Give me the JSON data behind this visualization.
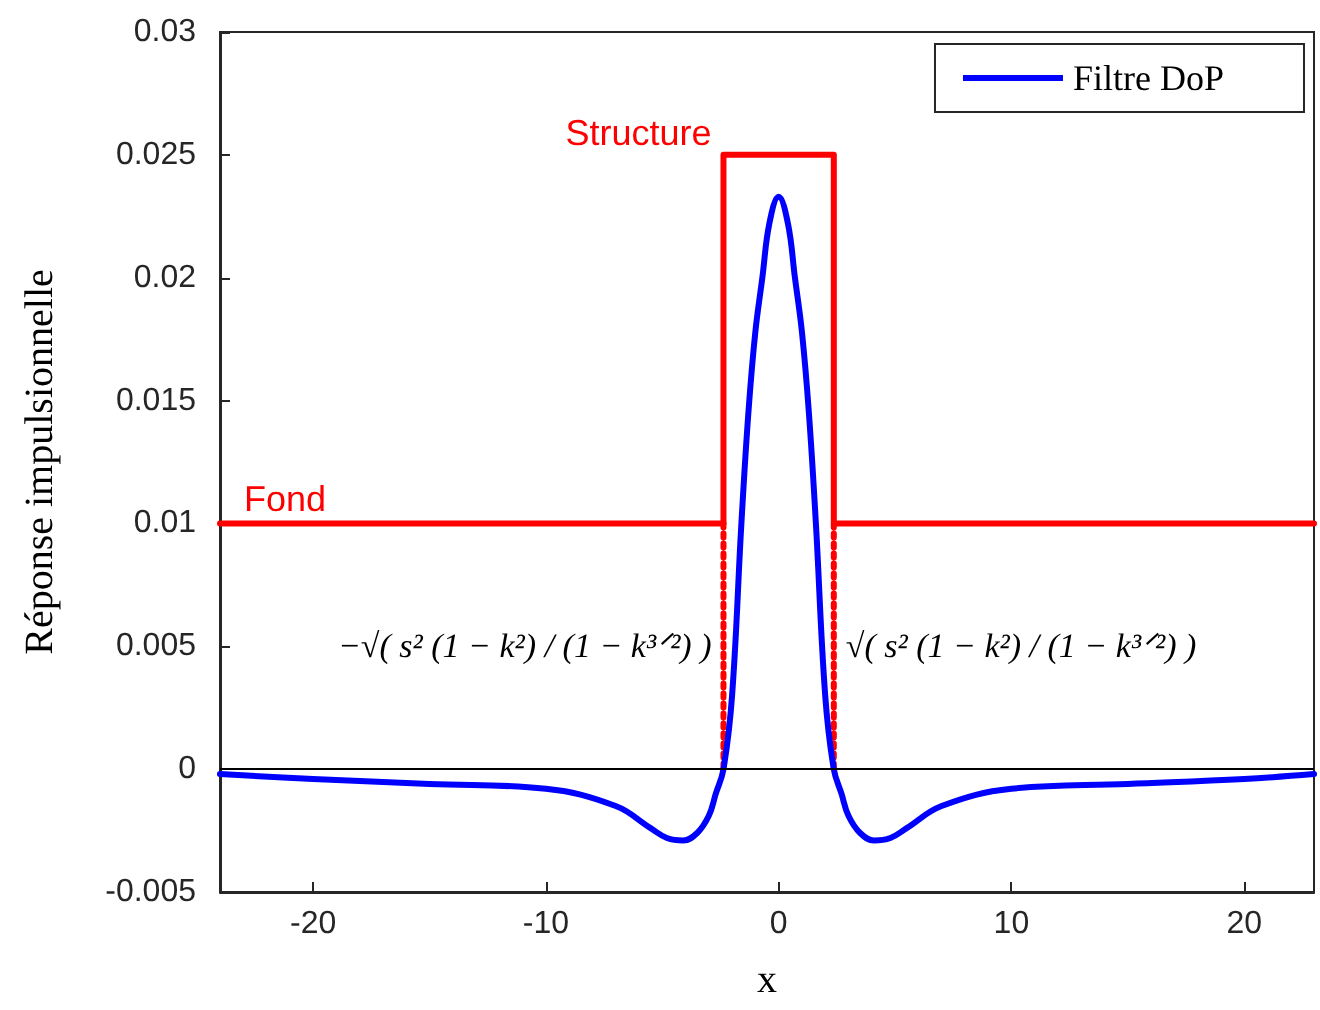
{
  "chart_data": {
    "type": "line",
    "xlabel": "x",
    "ylabel": "Réponse impulsionnelle",
    "xlim": [
      -24,
      23
    ],
    "ylim": [
      -0.005,
      0.03
    ],
    "xticks": [
      -20,
      -10,
      0,
      10,
      20
    ],
    "yticks": [
      -0.005,
      0,
      0.005,
      0.01,
      0.015,
      0.02,
      0.025,
      0.03
    ],
    "grid": false,
    "legend": "top right",
    "marker": "none",
    "series": [
      {
        "color": "#ff0000",
        "line_style": "solid",
        "x": [
          -24,
          -2.37,
          -2.37,
          2.37,
          2.37,
          23
        ],
        "values": [
          0.01,
          0.01,
          0.025,
          0.025,
          0.01,
          0.01
        ]
      },
      {
        "color": "#ff0000",
        "line_style": "dotted",
        "x": [
          -2.37,
          -2.37
        ],
        "values": [
          0.01,
          0
        ]
      },
      {
        "color": "#ff0000",
        "line_style": "dotted",
        "x": [
          2.37,
          2.37
        ],
        "values": [
          0.01,
          0
        ]
      },
      {
        "name": "Filtre DoP",
        "color": "#0000ff",
        "line_style": "solid",
        "x": [
          -24,
          -20,
          -15,
          -10,
          -7,
          -5.5,
          -4.8,
          -4.1,
          -3.5,
          -3,
          -2.7,
          -2.37,
          -2,
          -1.6,
          -1.3,
          -1,
          -0.7,
          -0.4,
          0,
          0.4,
          0.7,
          1,
          1.3,
          1.6,
          2,
          2.37,
          2.7,
          3,
          3.5,
          4.1,
          4.8,
          5.5,
          7,
          10,
          15,
          20,
          23
        ],
        "values": [
          -0.0002,
          -0.0004,
          -0.0006,
          -0.0008,
          -0.0015,
          -0.0024,
          -0.0028,
          -0.0029,
          -0.0026,
          -0.0019,
          -0.001,
          0,
          0.003,
          0.01,
          0.0145,
          0.0178,
          0.02,
          0.0222,
          0.0233,
          0.0222,
          0.02,
          0.0178,
          0.0145,
          0.01,
          0.003,
          0,
          -0.001,
          -0.0019,
          -0.0026,
          -0.0029,
          -0.0028,
          -0.0024,
          -0.0015,
          -0.0008,
          -0.0006,
          -0.0004,
          -0.0002
        ]
      }
    ],
    "ref_lines": [
      {
        "axis": "y",
        "value": 0,
        "label": null,
        "color": "#000000",
        "line_style": "solid"
      }
    ],
    "annotations": [
      {
        "text": "Structure",
        "x": -2.37,
        "y": 0.025
      },
      {
        "text": "Fond",
        "x": -24,
        "y": 0.01
      },
      {
        "text": "−√( s² (1 − k²) / (1 − k³ᐟ²) )",
        "x": -2.37,
        "y": 0.005
      },
      {
        "text": "√( s² (1 − k²) / (1 − k³ᐟ²) )",
        "x": 2.37,
        "y": 0.005
      }
    ]
  }
}
